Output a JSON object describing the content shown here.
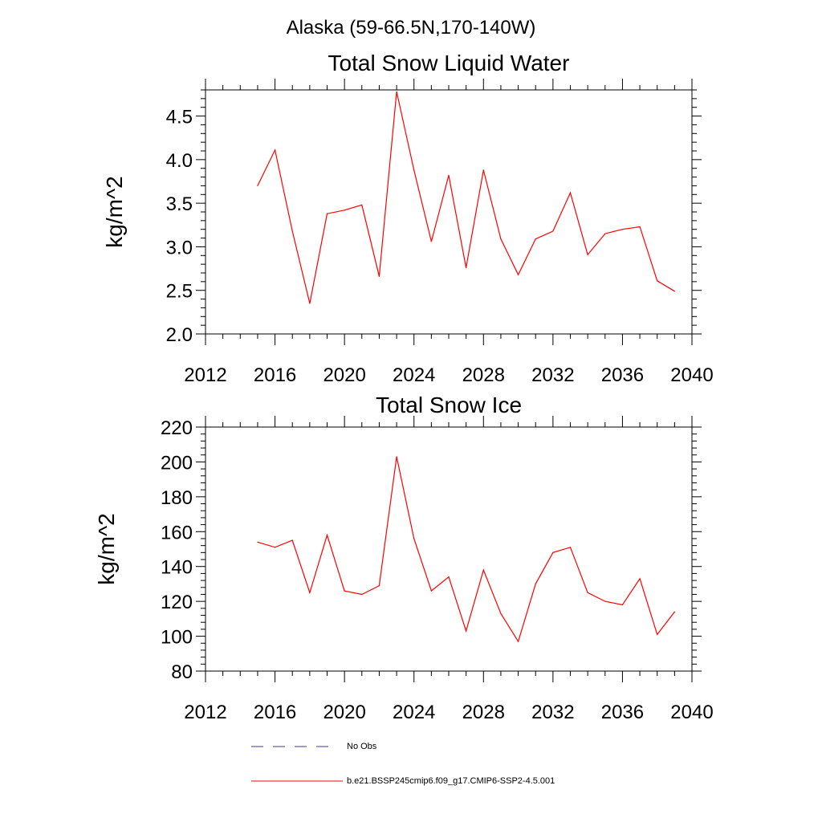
{
  "suptitle": "Alaska (59-66.5N,170-140W)",
  "colors": {
    "model": "#ff0000",
    "obs": "#3a3a8c",
    "axis": "#000000"
  },
  "legend": {
    "obs_label": "No Obs",
    "model_label": "b.e21.BSSP245cmip6.f09_g17.CMIP6-SSP2-4.5.001"
  },
  "chart_data": [
    {
      "type": "line",
      "title": "Total Snow Liquid Water",
      "ylabel": "kg/m^2",
      "xlabel": "",
      "xlim": [
        2012,
        2040
      ],
      "ylim": [
        2.0,
        4.8
      ],
      "xticks": [
        2012,
        2016,
        2020,
        2024,
        2028,
        2032,
        2036,
        2040
      ],
      "yticks": [
        2.0,
        2.5,
        3.0,
        3.5,
        4.0,
        4.5
      ],
      "ytick_labels": [
        "2.0",
        "2.5",
        "3.0",
        "3.5",
        "4.0",
        "4.5"
      ],
      "series": [
        {
          "name": "b.e21.BSSP245cmip6.f09_g17.CMIP6-SSP2-4.5.001",
          "x": [
            2015,
            2016,
            2017,
            2018,
            2019,
            2020,
            2021,
            2022,
            2023,
            2024,
            2025,
            2026,
            2027,
            2028,
            2029,
            2030,
            2031,
            2032,
            2033,
            2034,
            2035,
            2036,
            2037,
            2038,
            2039
          ],
          "y": [
            3.7,
            4.11,
            3.18,
            2.35,
            3.38,
            3.42,
            3.48,
            2.66,
            4.78,
            3.88,
            3.06,
            3.82,
            2.76,
            3.88,
            3.09,
            2.68,
            3.09,
            3.18,
            3.62,
            2.91,
            3.15,
            3.2,
            3.23,
            2.61,
            2.49
          ]
        }
      ]
    },
    {
      "type": "line",
      "title": "Total Snow Ice",
      "ylabel": "kg/m^2",
      "xlabel": "",
      "xlim": [
        2012,
        2040
      ],
      "ylim": [
        80,
        220
      ],
      "xticks": [
        2012,
        2016,
        2020,
        2024,
        2028,
        2032,
        2036,
        2040
      ],
      "yticks": [
        80,
        100,
        120,
        140,
        160,
        180,
        200,
        220
      ],
      "ytick_labels": [
        "80",
        "100",
        "120",
        "140",
        "160",
        "180",
        "200",
        "220"
      ],
      "series": [
        {
          "name": "b.e21.BSSP245cmip6.f09_g17.CMIP6-SSP2-4.5.001",
          "x": [
            2015,
            2016,
            2017,
            2018,
            2019,
            2020,
            2021,
            2022,
            2023,
            2024,
            2025,
            2026,
            2027,
            2028,
            2029,
            2030,
            2031,
            2032,
            2033,
            2034,
            2035,
            2036,
            2037,
            2038,
            2039
          ],
          "y": [
            154,
            151,
            155,
            125,
            158,
            126,
            124,
            129,
            203,
            156,
            126,
            134,
            103,
            138,
            113,
            97,
            130,
            148,
            151,
            125,
            120,
            118,
            133,
            101,
            114
          ]
        }
      ]
    }
  ]
}
